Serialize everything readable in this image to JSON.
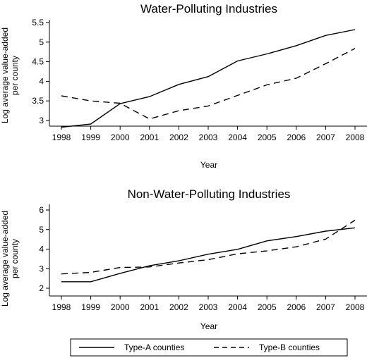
{
  "chart_data": [
    {
      "type": "line",
      "title": "Water-Polluting Industries",
      "xlabel": "Year",
      "ylabel": [
        "Log average value-added",
        "per county"
      ],
      "x": [
        1998,
        1999,
        2000,
        2001,
        2002,
        2003,
        2004,
        2005,
        2006,
        2007,
        2008
      ],
      "yticks": [
        3,
        3.5,
        4,
        4.5,
        5,
        5.5
      ],
      "ytick_labels": [
        "3",
        "3.5",
        "4",
        "4.5",
        "5",
        "5.5"
      ],
      "ylim": [
        2.8,
        5.6
      ],
      "grid": false,
      "series": [
        {
          "name": "Type-A counties",
          "style": "solid",
          "values": [
            2.83,
            2.91,
            3.43,
            3.61,
            3.92,
            4.12,
            4.52,
            4.7,
            4.91,
            5.17,
            5.32
          ]
        },
        {
          "name": "Type-B counties",
          "style": "dashed",
          "values": [
            3.63,
            3.5,
            3.44,
            3.04,
            3.25,
            3.37,
            3.64,
            3.91,
            4.08,
            4.45,
            4.84
          ]
        }
      ]
    },
    {
      "type": "line",
      "title": "Non-Water-Polluting Industries",
      "xlabel": "Year",
      "ylabel": [
        "Log average value-added",
        "per county"
      ],
      "x": [
        1998,
        1999,
        2000,
        2001,
        2002,
        2003,
        2004,
        2005,
        2006,
        2007,
        2008
      ],
      "yticks": [
        2,
        3,
        4,
        5,
        6
      ],
      "ytick_labels": [
        "2",
        "3",
        "4",
        "5",
        "6"
      ],
      "ylim": [
        1.8,
        6.3
      ],
      "grid": false,
      "series": [
        {
          "name": "Type-A counties",
          "style": "solid",
          "values": [
            2.33,
            2.33,
            2.76,
            3.15,
            3.4,
            3.74,
            3.99,
            4.42,
            4.64,
            4.92,
            5.09
          ]
        },
        {
          "name": "Type-B counties",
          "style": "dashed",
          "values": [
            2.73,
            2.81,
            3.06,
            3.09,
            3.29,
            3.46,
            3.76,
            3.91,
            4.12,
            4.51,
            5.48
          ]
        }
      ]
    }
  ],
  "legend": {
    "placement": "bottom",
    "entries": [
      {
        "label": "Type-A counties",
        "style": "solid"
      },
      {
        "label": "Type-B counties",
        "style": "dashed"
      }
    ]
  }
}
